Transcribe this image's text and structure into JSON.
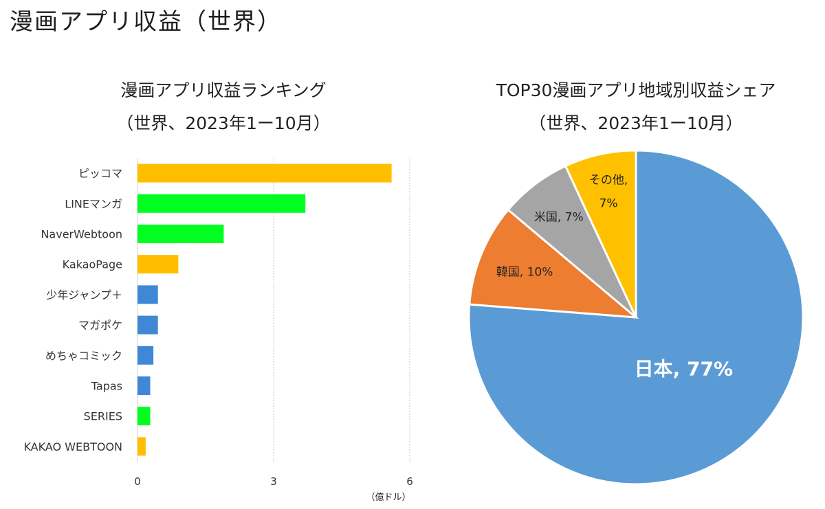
{
  "page_title": "漫画アプリ収益（世界）",
  "colors": {
    "orange_bar": "#ffbf00",
    "green_bar": "#00ff21",
    "blue_bar": "#3f88d6",
    "grid": "#c8c8c8"
  },
  "chart_data": [
    {
      "type": "bar",
      "orientation": "horizontal",
      "title": "漫画アプリ収益ランキング",
      "subtitle": "（世界、2023年1ー10月）",
      "xlabel": "（億ドル）",
      "xlim": [
        0,
        6
      ],
      "xticks": [
        0,
        3,
        6
      ],
      "grid": true,
      "categories": [
        "ピッコマ",
        "LINEマンガ",
        "NaverWebtoon",
        "KakaoPage",
        "少年ジャンプ＋",
        "マガポケ",
        "めちゃコミック",
        "Tapas",
        "SERIES",
        "KAKAO WEBTOON"
      ],
      "values": [
        5.6,
        3.7,
        1.9,
        0.9,
        0.45,
        0.45,
        0.35,
        0.28,
        0.28,
        0.18
      ],
      "bar_colors": [
        "#ffbf00",
        "#00ff21",
        "#00ff21",
        "#ffbf00",
        "#3f88d6",
        "#3f88d6",
        "#3f88d6",
        "#3f88d6",
        "#00ff21",
        "#ffbf00"
      ]
    },
    {
      "type": "pie",
      "title": "TOP30漫画アプリ地域別収益シェア",
      "subtitle": "（世界、2023年1ー10月）",
      "slices": [
        {
          "label": "日本, 77%",
          "value": 77,
          "color": "#5b9bd5"
        },
        {
          "label": "韓国, 10%",
          "value": 10,
          "color": "#ed7d31"
        },
        {
          "label": "米国, 7%",
          "value": 7,
          "color": "#a5a5a5"
        },
        {
          "label": "その他, 7%",
          "value": 7,
          "color": "#ffc000"
        }
      ]
    }
  ]
}
